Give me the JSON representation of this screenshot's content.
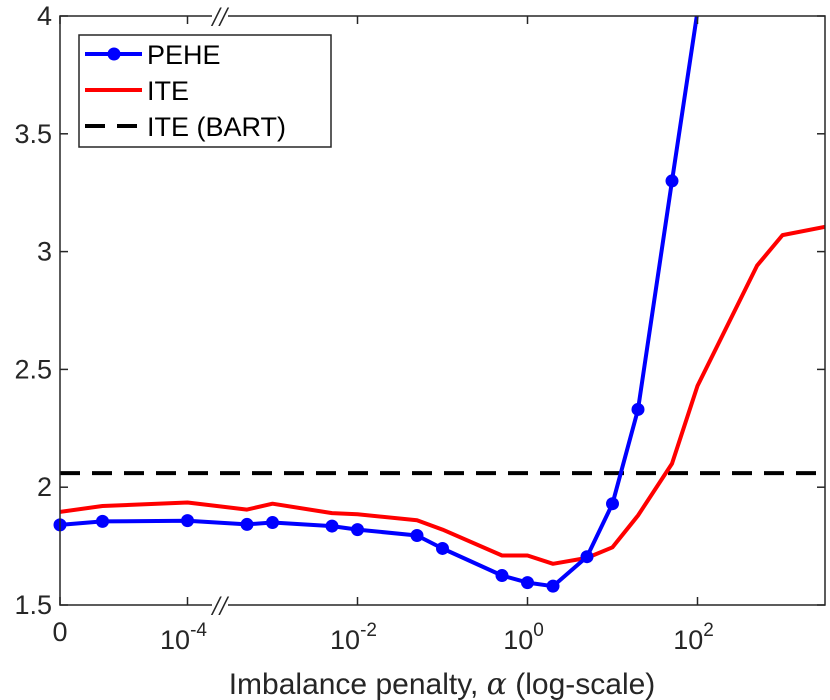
{
  "chart_data": {
    "type": "line",
    "title": "",
    "xlabel": "Imbalance penalty, α (log-scale)",
    "ylabel": "",
    "xscale": "log10 with axis break; first point at α = 0",
    "xlim_log10": [
      -5.5,
      3.5
    ],
    "ylim": [
      1.5,
      4
    ],
    "break_marker": "//",
    "x_ticks": [
      {
        "log10": null,
        "label": "0"
      },
      {
        "log10": -4,
        "base": "10",
        "exp": "-4"
      },
      {
        "log10": -2,
        "base": "10",
        "exp": "-2"
      },
      {
        "log10": 0,
        "base": "10",
        "exp": "0"
      },
      {
        "log10": 2,
        "base": "10",
        "exp": "2"
      }
    ],
    "y_ticks": [
      {
        "value": 1.5,
        "label": "1.5"
      },
      {
        "value": 2,
        "label": "2"
      },
      {
        "value": 2.5,
        "label": "2.5"
      },
      {
        "value": 3,
        "label": "3"
      },
      {
        "value": 3.5,
        "label": "3.5"
      },
      {
        "value": 4,
        "label": "4"
      }
    ],
    "series": [
      {
        "name": "PEHE",
        "color": "#0000ff",
        "style": "solid",
        "marker": "circle",
        "points": [
          {
            "log10": null,
            "y": 1.84
          },
          {
            "log10": -5,
            "y": 1.855
          },
          {
            "log10": -4,
            "y": 1.858
          },
          {
            "log10": -3.3,
            "y": 1.842
          },
          {
            "log10": -3,
            "y": 1.85
          },
          {
            "log10": -2.3,
            "y": 1.835
          },
          {
            "log10": -2,
            "y": 1.82
          },
          {
            "log10": -1.3,
            "y": 1.795
          },
          {
            "log10": -1,
            "y": 1.74
          },
          {
            "log10": -0.3,
            "y": 1.625
          },
          {
            "log10": 0,
            "y": 1.595
          },
          {
            "log10": 0.3,
            "y": 1.58
          },
          {
            "log10": 0.7,
            "y": 1.705
          },
          {
            "log10": 1,
            "y": 1.93
          },
          {
            "log10": 1.3,
            "y": 2.33
          },
          {
            "log10": 1.7,
            "y": 3.3
          },
          {
            "log10": 2,
            "y": 4.02
          }
        ]
      },
      {
        "name": "ITE",
        "color": "#ff0000",
        "style": "solid",
        "marker": "none",
        "points": [
          {
            "log10": null,
            "y": 1.895
          },
          {
            "log10": -5,
            "y": 1.92
          },
          {
            "log10": -4,
            "y": 1.935
          },
          {
            "log10": -3.3,
            "y": 1.905
          },
          {
            "log10": -3,
            "y": 1.93
          },
          {
            "log10": -2.3,
            "y": 1.89
          },
          {
            "log10": -2,
            "y": 1.885
          },
          {
            "log10": -1.3,
            "y": 1.86
          },
          {
            "log10": -1,
            "y": 1.82
          },
          {
            "log10": -0.3,
            "y": 1.71
          },
          {
            "log10": 0,
            "y": 1.71
          },
          {
            "log10": 0.3,
            "y": 1.675
          },
          {
            "log10": 0.7,
            "y": 1.7
          },
          {
            "log10": 1,
            "y": 1.745
          },
          {
            "log10": 1.3,
            "y": 1.88
          },
          {
            "log10": 1.7,
            "y": 2.1
          },
          {
            "log10": 2,
            "y": 2.43
          },
          {
            "log10": 2.7,
            "y": 2.94
          },
          {
            "log10": 3,
            "y": 3.07
          },
          {
            "log10": 3.5,
            "y": 3.105
          }
        ]
      },
      {
        "name": "ITE (BART)",
        "color": "#000000",
        "style": "dashed",
        "marker": "none",
        "constant_y": 2.06
      }
    ],
    "legend": {
      "position": "top-left",
      "entries": [
        "PEHE",
        "ITE",
        "ITE (BART)"
      ]
    }
  }
}
